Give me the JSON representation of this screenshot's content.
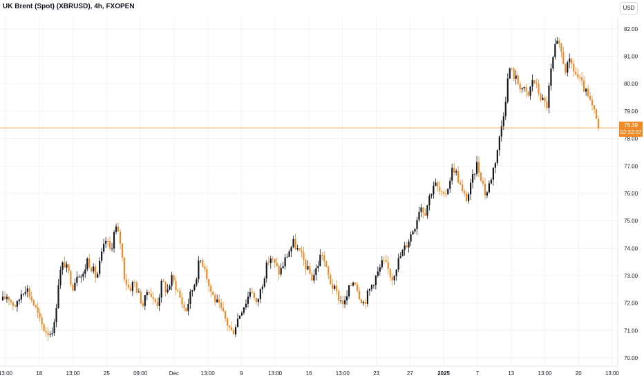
{
  "chart_title": "UK Brent (Spot) (XBRUSD), 4h, FXOPEN",
  "currency_label": "USD",
  "last_price": "78.39",
  "countdown": "02:32:07",
  "colors": {
    "up": "#131722",
    "down": "#f08a26",
    "grid": "#f2f3f5",
    "price_line": "#f08a26"
  },
  "chart_data": {
    "type": "candlestick",
    "y_axis_ticks": [
      "70.00",
      "71.00",
      "72.00",
      "73.00",
      "74.00",
      "75.00",
      "76.00",
      "77.00",
      "78.00",
      "79.00",
      "80.00",
      "81.00",
      "82.00"
    ],
    "y_axis_range": [
      69.7,
      82.4
    ],
    "x_axis_ticks": [
      {
        "label": "13:00",
        "bold": false
      },
      {
        "label": "18",
        "bold": false
      },
      {
        "label": "13:00",
        "bold": false
      },
      {
        "label": "25",
        "bold": false
      },
      {
        "label": "09:00",
        "bold": false
      },
      {
        "label": "Dec",
        "bold": false
      },
      {
        "label": "13:00",
        "bold": false
      },
      {
        "label": "9",
        "bold": false
      },
      {
        "label": "13:00",
        "bold": false
      },
      {
        "label": "16",
        "bold": false
      },
      {
        "label": "13:00",
        "bold": false
      },
      {
        "label": "23",
        "bold": false
      },
      {
        "label": "27",
        "bold": false
      },
      {
        "label": "2025",
        "bold": true
      },
      {
        "label": "7",
        "bold": false
      },
      {
        "label": "13",
        "bold": false
      },
      {
        "label": "13:00",
        "bold": false
      },
      {
        "label": "20",
        "bold": false
      },
      {
        "label": "13:00",
        "bold": false
      }
    ],
    "last_price_value": 78.39,
    "grid": true,
    "close_path": [
      72.1,
      72.3,
      72.0,
      71.9,
      72.4,
      72.6,
      72.2,
      71.8,
      71.3,
      71.0,
      70.9,
      71.2,
      73.0,
      73.5,
      73.1,
      72.6,
      73.2,
      72.9,
      73.6,
      73.3,
      72.9,
      73.7,
      74.3,
      73.9,
      74.8,
      74.3,
      72.9,
      72.5,
      72.8,
      72.3,
      71.9,
      72.6,
      72.1,
      72.0,
      72.8,
      72.4,
      72.9,
      72.6,
      72.1,
      71.7,
      72.3,
      72.8,
      73.6,
      73.4,
      72.6,
      72.2,
      71.9,
      71.6,
      71.2,
      70.9,
      71.4,
      71.8,
      72.1,
      72.6,
      71.9,
      72.5,
      73.2,
      73.7,
      73.4,
      73.1,
      73.5,
      73.9,
      74.2,
      73.9,
      73.6,
      73.2,
      72.9,
      73.3,
      73.9,
      73.2,
      72.7,
      72.4,
      72.1,
      72.0,
      72.6,
      72.9,
      72.3,
      72.0,
      72.4,
      72.8,
      73.1,
      73.5,
      73.3,
      72.9,
      73.4,
      73.8,
      74.1,
      74.5,
      74.9,
      75.6,
      75.3,
      75.9,
      76.4,
      76.1,
      75.8,
      76.3,
      77.0,
      76.6,
      76.0,
      75.8,
      76.4,
      77.1,
      76.6,
      75.9,
      76.5,
      77.2,
      78.1,
      79.2,
      80.6,
      80.3,
      80.0,
      79.8,
      79.5,
      80.2,
      79.8,
      79.4,
      79.2,
      80.6,
      81.5,
      81.2,
      80.5,
      80.8,
      80.4,
      80.1,
      79.8,
      79.4,
      79.0,
      78.39
    ]
  }
}
